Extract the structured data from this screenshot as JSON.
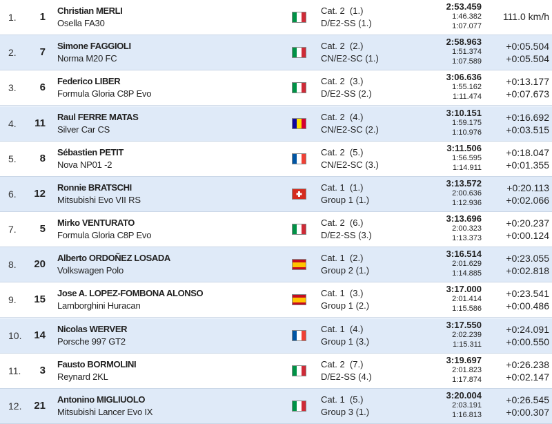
{
  "table": {
    "rows": [
      {
        "pos": "1.",
        "num": "1",
        "name": "Christian MERLI",
        "car": "Osella FA30",
        "cat": "Cat. 2  (1.)",
        "cls": "D/E2-SS (1.)",
        "time": "2:53.459",
        "split1": "1:46.382",
        "split2": "1:07.077",
        "gaps": [
          "111.0 km/h"
        ]
      },
      {
        "pos": "2.",
        "num": "7",
        "name": "Simone FAGGIOLI",
        "car": "Norma M20 FC",
        "cat": "Cat. 2  (2.)",
        "cls": "CN/E2-SC (1.)",
        "time": "2:58.963",
        "split1": "1:51.374",
        "split2": "1:07.589",
        "gaps": [
          "+0:05.504",
          "+0:05.504"
        ]
      },
      {
        "pos": "3.",
        "num": "6",
        "name": "Federico LIBER",
        "car": "Formula Gloria C8P Evo",
        "cat": "Cat. 2  (3.)",
        "cls": "D/E2-SS (2.)",
        "time": "3:06.636",
        "split1": "1:55.162",
        "split2": "1:11.474",
        "gaps": [
          "+0:13.177",
          "+0:07.673"
        ]
      },
      {
        "pos": "4.",
        "num": "11",
        "name": "Raul FERRE MATAS",
        "car": "Silver Car CS",
        "cat": "Cat. 2  (4.)",
        "cls": "CN/E2-SC (2.)",
        "time": "3:10.151",
        "split1": "1:59.175",
        "split2": "1:10.976",
        "gaps": [
          "+0:16.692",
          "+0:03.515"
        ]
      },
      {
        "pos": "5.",
        "num": "8",
        "name": "Sébastien PETIT",
        "car": "Nova NP01 -2",
        "cat": "Cat. 2  (5.)",
        "cls": "CN/E2-SC (3.)",
        "time": "3:11.506",
        "split1": "1:56.595",
        "split2": "1:14.911",
        "gaps": [
          "+0:18.047",
          "+0:01.355"
        ]
      },
      {
        "pos": "6.",
        "num": "12",
        "name": "Ronnie BRATSCHI",
        "car": "Mitsubishi Evo VII RS",
        "cat": "Cat. 1  (1.)",
        "cls": "Group 1 (1.)",
        "time": "3:13.572",
        "split1": "2:00.636",
        "split2": "1:12.936",
        "gaps": [
          "+0:20.113",
          "+0:02.066"
        ]
      },
      {
        "pos": "7.",
        "num": "5",
        "name": "Mirko VENTURATO",
        "car": "Formula Gloria C8P Evo",
        "cat": "Cat. 2  (6.)",
        "cls": "D/E2-SS (3.)",
        "time": "3:13.696",
        "split1": "2:00.323",
        "split2": "1:13.373",
        "gaps": [
          "+0:20.237",
          "+0:00.124"
        ]
      },
      {
        "pos": "8.",
        "num": "20",
        "name": "Alberto ORDOÑEZ LOSADA",
        "car": "Volkswagen Polo",
        "cat": "Cat. 1  (2.)",
        "cls": "Group 2 (1.)",
        "time": "3:16.514",
        "split1": "2:01.629",
        "split2": "1:14.885",
        "gaps": [
          "+0:23.055",
          "+0:02.818"
        ]
      },
      {
        "pos": "9.",
        "num": "15",
        "name": "Jose A. LOPEZ-FOMBONA ALONSO",
        "car": "Lamborghini Huracan",
        "cat": "Cat. 1  (3.)",
        "cls": "Group 1 (2.)",
        "time": "3:17.000",
        "split1": "2:01.414",
        "split2": "1:15.586",
        "gaps": [
          "+0:23.541",
          "+0:00.486"
        ]
      },
      {
        "pos": "10.",
        "num": "14",
        "name": "Nicolas WERVER",
        "car": "Porsche 997 GT2",
        "cat": "Cat. 1  (4.)",
        "cls": "Group 1 (3.)",
        "time": "3:17.550",
        "split1": "2:02.239",
        "split2": "1:15.311",
        "gaps": [
          "+0:24.091",
          "+0:00.550"
        ]
      },
      {
        "pos": "11.",
        "num": "3",
        "name": "Fausto BORMOLINI",
        "car": "Reynard 2KL",
        "cat": "Cat. 2  (7.)",
        "cls": "D/E2-SS (4.)",
        "time": "3:19.697",
        "split1": "2:01.823",
        "split2": "1:17.874",
        "gaps": [
          "+0:26.238",
          "+0:02.147"
        ]
      },
      {
        "pos": "12.",
        "num": "21",
        "name": "Antonino MIGLIUOLO",
        "car": "Mitsubishi Lancer Evo IX",
        "cat": "Cat. 1  (5.)",
        "cls": "Group 3 (1.)",
        "time": "3:20.004",
        "split1": "2:03.191",
        "split2": "1:16.813",
        "gaps": [
          "+0:26.545",
          "+0:00.307"
        ]
      }
    ]
  }
}
